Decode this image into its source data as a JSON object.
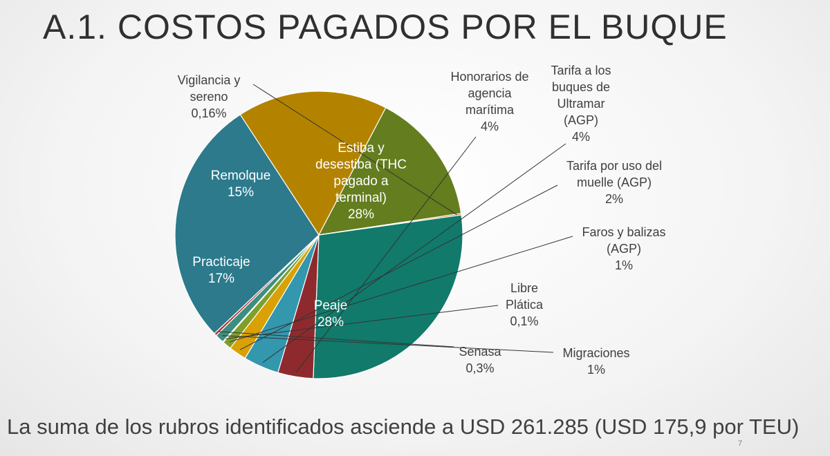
{
  "slide": {
    "title": "A.1. COSTOS PAGADOS POR EL BUQUE",
    "footer": "La suma de los rubros identificados asciende a USD 261.285 (USD 175,9 por TEU)",
    "page_number": "7"
  },
  "chart_data": {
    "type": "pie",
    "title": "",
    "start_angle_deg": -8,
    "direction": "clockwise",
    "slices": [
      {
        "name": "Estiba y desestiba (THC pagado a terminal)",
        "value": 28,
        "label": "28%",
        "color": "#117A6B",
        "inside": true
      },
      {
        "name": "Honorarios de agencia marítima",
        "value": 4,
        "label": "4%",
        "color": "#8E2A2E",
        "inside": false
      },
      {
        "name": "Tarifa a los buques de Ultramar (AGP)",
        "value": 4,
        "label": "4%",
        "color": "#3397AE",
        "inside": false
      },
      {
        "name": "Tarifa por uso del muelle (AGP)",
        "value": 2,
        "label": "2%",
        "color": "#D9A106",
        "inside": false
      },
      {
        "name": "Faros y balizas (AGP)",
        "value": 1,
        "label": "1%",
        "color": "#7F9F2B",
        "inside": false
      },
      {
        "name": "Libre Plática",
        "value": 0.1,
        "label": "0,1%",
        "color": "#C86A12",
        "inside": false
      },
      {
        "name": "Migraciones",
        "value": 1,
        "label": "1%",
        "color": "#3C8F7F",
        "inside": false
      },
      {
        "name": "Senasa",
        "value": 0.3,
        "label": "0,3%",
        "color": "#B03A3A",
        "inside": false
      },
      {
        "name": "Peaje",
        "value": 28,
        "label": "28%",
        "color": "#2C7A8C",
        "inside": true
      },
      {
        "name": "Practicaje",
        "value": 17,
        "label": "17%",
        "color": "#B38300",
        "inside": true
      },
      {
        "name": "Remolque",
        "value": 15,
        "label": "15%",
        "color": "#647D1E",
        "inside": true
      },
      {
        "name": "Vigilancia y sereno",
        "value": 0.16,
        "label": "0,16%",
        "color": "#C0681A",
        "inside": false
      }
    ]
  }
}
